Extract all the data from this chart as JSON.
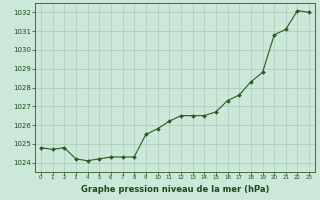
{
  "hours": [
    0,
    1,
    2,
    3,
    4,
    5,
    6,
    7,
    8,
    9,
    10,
    11,
    12,
    13,
    14,
    15,
    16,
    17,
    18,
    19,
    20,
    21,
    22,
    23
  ],
  "pressure": [
    1024.8,
    1024.7,
    1024.8,
    1024.2,
    1024.1,
    1024.2,
    1024.3,
    1024.3,
    1024.3,
    1025.5,
    1025.8,
    1026.2,
    1026.5,
    1026.5,
    1026.5,
    1026.7,
    1027.3,
    1027.6,
    1028.3,
    1028.8,
    1030.8,
    1031.1,
    1032.1,
    1032.0
  ],
  "ylim": [
    1023.5,
    1032.5
  ],
  "yticks": [
    1024,
    1025,
    1026,
    1027,
    1028,
    1029,
    1030,
    1031,
    1032
  ],
  "xticks": [
    0,
    1,
    2,
    3,
    4,
    5,
    6,
    7,
    8,
    9,
    10,
    11,
    12,
    13,
    14,
    15,
    16,
    17,
    18,
    19,
    20,
    21,
    22,
    23
  ],
  "line_color": "#2d5a1e",
  "marker_color": "#2d5a1e",
  "bg_color": "#cce8d8",
  "grid_color": "#aaccbb",
  "xlabel": "Graphe pression niveau de la mer (hPa)",
  "xlabel_color": "#1a4a1a",
  "tick_color": "#1a4a1a",
  "axis_color": "#2d5a1e"
}
